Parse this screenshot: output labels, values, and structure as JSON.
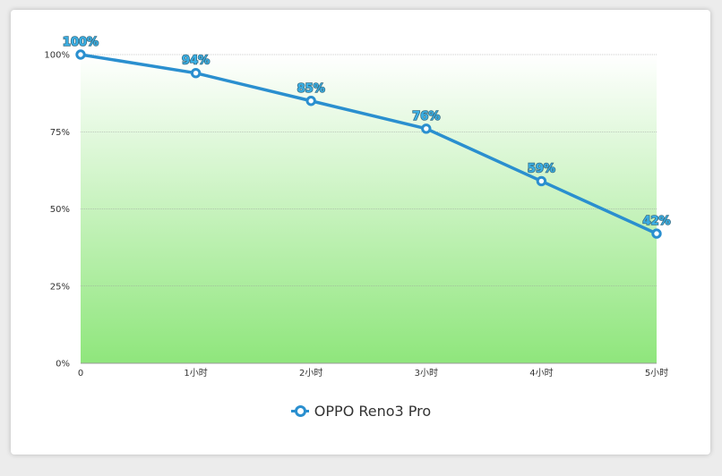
{
  "chart_data": {
    "type": "area",
    "categories": [
      "0",
      "1小时",
      "2小时",
      "3小时",
      "4小时",
      "5小时"
    ],
    "y_ticks": [
      "0%",
      "25%",
      "50%",
      "75%",
      "100%"
    ],
    "ylim": [
      0,
      100
    ],
    "grid": true,
    "legend_position": "bottom",
    "series": [
      {
        "name": "OPPO Reno3 Pro",
        "values": [
          100,
          94,
          85,
          76,
          59,
          42
        ],
        "labels": [
          "100%",
          "94%",
          "85%",
          "76%",
          "59%",
          "42%"
        ]
      }
    ]
  },
  "colors": {
    "line": "#2a8fcf",
    "label": "#3ab0e6",
    "fill_top": "#ffffff",
    "fill_bottom": "#8fe67c",
    "grid": "#9a9a9a",
    "axis": "#999999"
  }
}
